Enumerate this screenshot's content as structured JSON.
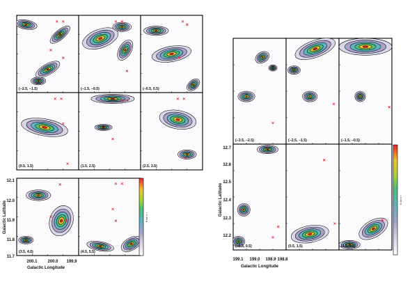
{
  "left_figure": {
    "panels": [
      {
        "label": "(−2.5, −1.5)"
      },
      {
        "label": "(−1.5, −0.5)"
      },
      {
        "label": "(−0.5, 0.5)"
      },
      {
        "label": "(0.5, 1.5)"
      },
      {
        "label": "(1.5, 2.5)"
      },
      {
        "label": "(2.5, 3.5)"
      },
      {
        "label": "(3.5, 4.5)"
      },
      {
        "label": "(4.5, 5.5)"
      }
    ],
    "x_ticks": [
      "200.1",
      "200.0",
      "199.9"
    ],
    "y_ticks": [
      "12.1",
      "12.0",
      "11.9",
      "11.8",
      "11.7"
    ],
    "x_label": "Galactic Longitude",
    "y_label": "Galactic Latitude",
    "colorbar_label": "K km s⁻¹"
  },
  "right_figure": {
    "panels": [
      {
        "label": "(−3.5, −2.5)"
      },
      {
        "label": "(−2.5, −1.5)"
      },
      {
        "label": "(−1.5, −0.5)"
      },
      {
        "label": "(−0.5, 0.5)"
      },
      {
        "label": "(0.5, 1.5)"
      },
      {
        "label": "(1.5, 2.5)"
      }
    ],
    "x_ticks": [
      "199.1",
      "199.0",
      "198.9",
      "198.8"
    ],
    "y_ticks": [
      "12.7",
      "12.6",
      "12.5",
      "12.4",
      "12.3",
      "12.2"
    ],
    "x_label": "Galactic Longitude",
    "y_label": "Galactic Latitude",
    "colorbar_label": "K km s⁻¹"
  },
  "colors": {
    "contour": "#000000",
    "marker": "#e8202a",
    "colormap": [
      "#ffffff",
      "#d9d6e8",
      "#a9a3cc",
      "#62b4c0",
      "#4fbf7a",
      "#a8d63b",
      "#f2c12e",
      "#e8202a"
    ]
  }
}
